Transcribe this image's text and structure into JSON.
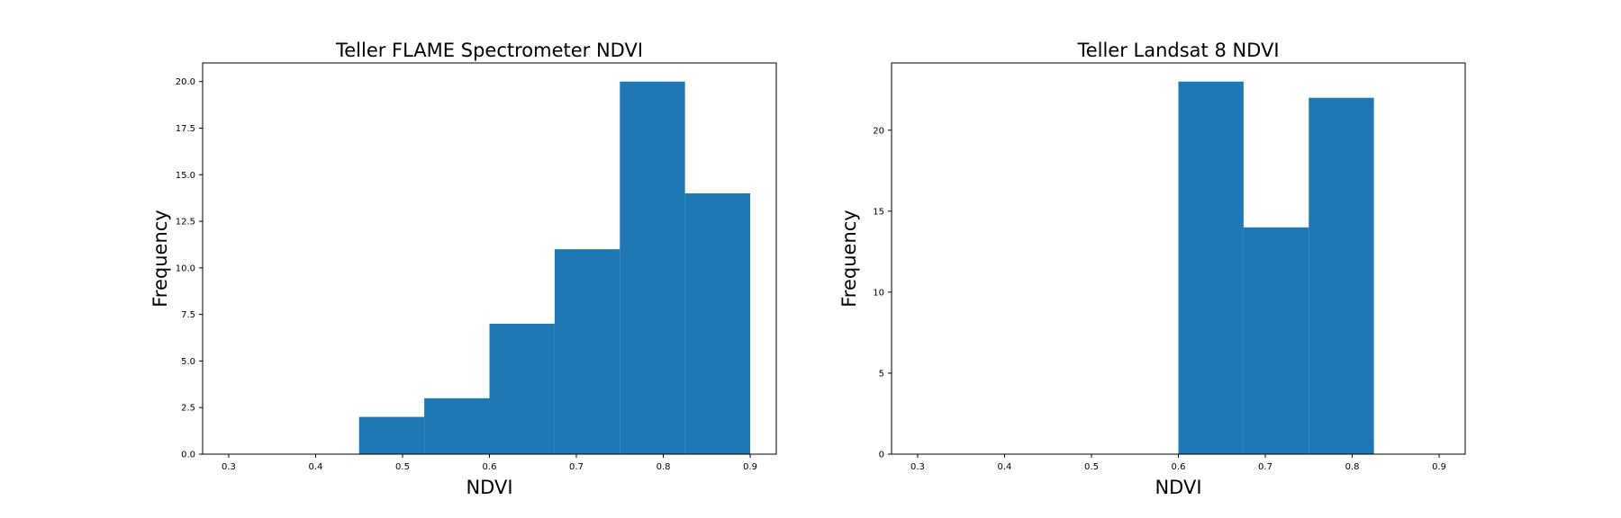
{
  "colors": {
    "bar": "#1f77b4",
    "background": "#ffffff",
    "axes": "#000000"
  },
  "chart_data": [
    {
      "type": "bar",
      "title": "Teller FLAME Spectrometer NDVI",
      "xlabel": "NDVI",
      "ylabel": "Frequency",
      "xlim": [
        0.27,
        0.93
      ],
      "ylim": [
        0,
        21
      ],
      "xticks": [
        "0.3",
        "0.4",
        "0.5",
        "0.6",
        "0.7",
        "0.8",
        "0.9"
      ],
      "xtick_values": [
        0.3,
        0.4,
        0.5,
        0.6,
        0.7,
        0.8,
        0.9
      ],
      "yticks": [
        "0.0",
        "2.5",
        "5.0",
        "7.5",
        "10.0",
        "12.5",
        "15.0",
        "17.5",
        "20.0"
      ],
      "ytick_values": [
        0,
        2.5,
        5,
        7.5,
        10,
        12.5,
        15,
        17.5,
        20
      ],
      "bins": [
        {
          "x0": 0.45,
          "x1": 0.525,
          "value": 2
        },
        {
          "x0": 0.525,
          "x1": 0.6,
          "value": 3
        },
        {
          "x0": 0.6,
          "x1": 0.675,
          "value": 7
        },
        {
          "x0": 0.675,
          "x1": 0.75,
          "value": 11
        },
        {
          "x0": 0.75,
          "x1": 0.825,
          "value": 20
        },
        {
          "x0": 0.825,
          "x1": 0.9,
          "value": 14
        }
      ]
    },
    {
      "type": "bar",
      "title": "Teller Landsat 8 NDVI",
      "xlabel": "NDVI",
      "ylabel": "Frequency",
      "xlim": [
        0.27,
        0.93
      ],
      "ylim": [
        0,
        24.15
      ],
      "xticks": [
        "0.3",
        "0.4",
        "0.5",
        "0.6",
        "0.7",
        "0.8",
        "0.9"
      ],
      "xtick_values": [
        0.3,
        0.4,
        0.5,
        0.6,
        0.7,
        0.8,
        0.9
      ],
      "yticks": [
        "0",
        "5",
        "10",
        "15",
        "20"
      ],
      "ytick_values": [
        0,
        5,
        10,
        15,
        20
      ],
      "bins": [
        {
          "x0": 0.6,
          "x1": 0.675,
          "value": 23
        },
        {
          "x0": 0.675,
          "x1": 0.75,
          "value": 14
        },
        {
          "x0": 0.75,
          "x1": 0.825,
          "value": 22
        }
      ]
    }
  ]
}
